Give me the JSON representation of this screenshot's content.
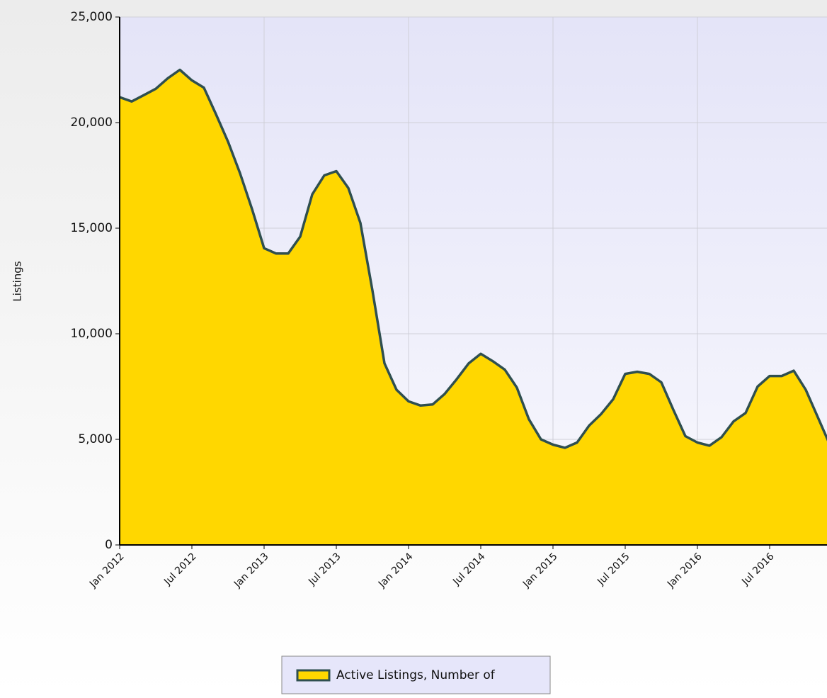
{
  "chart_data": {
    "type": "area",
    "y_label": "Listings",
    "x": [
      "2012-01",
      "2012-02",
      "2012-03",
      "2012-04",
      "2012-05",
      "2012-06",
      "2012-07",
      "2012-08",
      "2012-09",
      "2012-10",
      "2012-11",
      "2012-12",
      "2013-01",
      "2013-02",
      "2013-03",
      "2013-04",
      "2013-05",
      "2013-06",
      "2013-07",
      "2013-08",
      "2013-09",
      "2013-10",
      "2013-11",
      "2013-12",
      "2014-01",
      "2014-02",
      "2014-03",
      "2014-04",
      "2014-05",
      "2014-06",
      "2014-07",
      "2014-08",
      "2014-09",
      "2014-10",
      "2014-11",
      "2014-12",
      "2015-01",
      "2015-02",
      "2015-03",
      "2015-04",
      "2015-05",
      "2015-06",
      "2015-07",
      "2015-08",
      "2015-09",
      "2015-10",
      "2015-11",
      "2015-12",
      "2016-01",
      "2016-02",
      "2016-03",
      "2016-04",
      "2016-05",
      "2016-06",
      "2016-07",
      "2016-08",
      "2016-09",
      "2016-10",
      "2016-11",
      "2016-12"
    ],
    "series": [
      {
        "name": "Active Listings, Number of",
        "color": "#ffd700",
        "line_color": "#2f4f4f",
        "values": [
          21200,
          21000,
          21300,
          21600,
          22100,
          22500,
          22000,
          21650,
          20400,
          19100,
          17600,
          15900,
          14050,
          13800,
          13800,
          14600,
          16600,
          17500,
          17700,
          16900,
          15250,
          12050,
          8600,
          7350,
          6800,
          6600,
          6650,
          7150,
          7850,
          8600,
          9050,
          8700,
          8300,
          7450,
          5950,
          5000,
          4750,
          4600,
          4850,
          5650,
          6200,
          6900,
          8100,
          8200,
          8100,
          7700,
          6400,
          5150,
          4850,
          4700,
          5100,
          5850,
          6250,
          7500,
          8000,
          8000,
          8250,
          7350,
          6050,
          4750
        ]
      }
    ],
    "xlim": [
      "2012-01",
      "2017-01"
    ],
    "xticks": [
      {
        "value": "2012-01",
        "label": "Jan 2012"
      },
      {
        "value": "2012-07",
        "label": "Jul 2012"
      },
      {
        "value": "2013-01",
        "label": "Jan 2013"
      },
      {
        "value": "2013-07",
        "label": "Jul 2013"
      },
      {
        "value": "2014-01",
        "label": "Jan 2014"
      },
      {
        "value": "2014-07",
        "label": "Jul 2014"
      },
      {
        "value": "2015-01",
        "label": "Jan 2015"
      },
      {
        "value": "2015-07",
        "label": "Jul 2015"
      },
      {
        "value": "2016-01",
        "label": "Jan 2016"
      },
      {
        "value": "2016-07",
        "label": "Jul 2016"
      }
    ],
    "ylim": [
      0,
      25000
    ],
    "yticks": [
      0,
      {
        "value": 5000,
        "label": "5,000"
      },
      {
        "value": 10000,
        "label": "10,000"
      },
      {
        "value": 15000,
        "label": "15,000"
      },
      {
        "value": 20000,
        "label": "20,000"
      },
      {
        "value": 25000,
        "label": "25,000"
      }
    ],
    "grid": true,
    "legend": "bottom"
  }
}
